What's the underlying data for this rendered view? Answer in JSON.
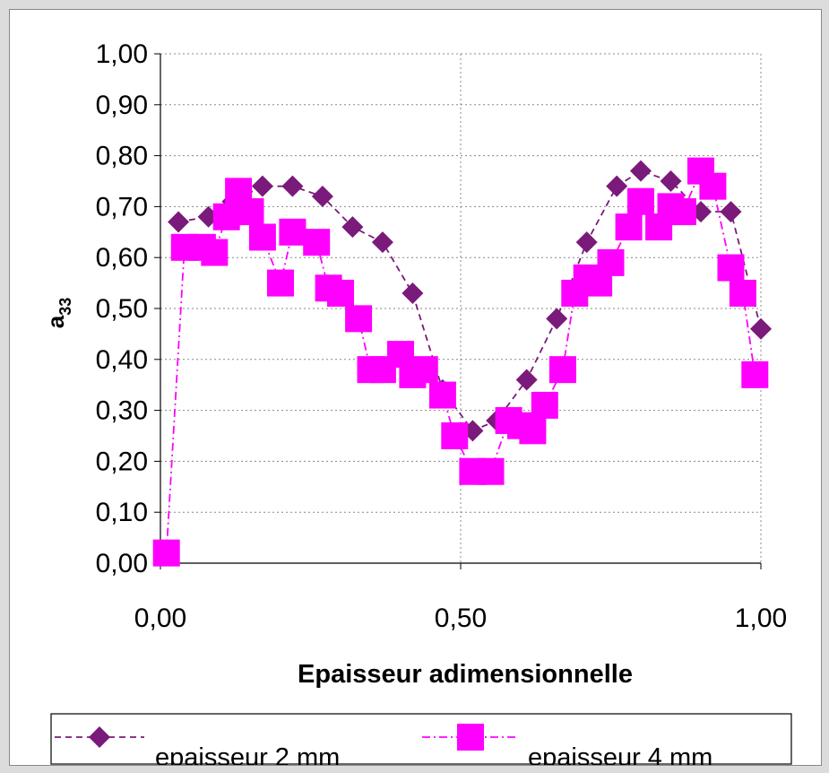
{
  "chart_data": {
    "type": "scatter",
    "xlabel": "Epaisseur adimensionnelle",
    "ylabel_main": "a",
    "ylabel_sub": "33",
    "xlim": [
      0,
      1
    ],
    "ylim": [
      0,
      1
    ],
    "xticks": [
      "0,00",
      "0,50",
      "1,00"
    ],
    "xtick_values": [
      0,
      0.5,
      1
    ],
    "yticks": [
      "0,00",
      "0,10",
      "0,20",
      "0,30",
      "0,40",
      "0,50",
      "0,60",
      "0,70",
      "0,80",
      "0,90",
      "1,00"
    ],
    "ytick_values": [
      0,
      0.1,
      0.2,
      0.3,
      0.4,
      0.5,
      0.6,
      0.7,
      0.8,
      0.9,
      1.0
    ],
    "grid": "dotted",
    "legend_position": "bottom",
    "series": [
      {
        "name": "epaisseur 2 mm",
        "marker": "diamond",
        "color": "#7a1a7a",
        "x": [
          0.03,
          0.08,
          0.12,
          0.17,
          0.22,
          0.27,
          0.32,
          0.37,
          0.42,
          0.47,
          0.52,
          0.56,
          0.61,
          0.66,
          0.71,
          0.76,
          0.8,
          0.85,
          0.9,
          0.95,
          1.0
        ],
        "y": [
          0.67,
          0.68,
          0.71,
          0.74,
          0.74,
          0.72,
          0.66,
          0.63,
          0.53,
          0.34,
          0.26,
          0.28,
          0.36,
          0.48,
          0.63,
          0.74,
          0.77,
          0.75,
          0.69,
          0.69,
          0.46
        ]
      },
      {
        "name": "epaisseur 4 mm",
        "marker": "square",
        "color": "#ff00ff",
        "x": [
          0.01,
          0.04,
          0.07,
          0.09,
          0.11,
          0.13,
          0.15,
          0.17,
          0.2,
          0.22,
          0.26,
          0.28,
          0.3,
          0.33,
          0.35,
          0.37,
          0.4,
          0.42,
          0.44,
          0.47,
          0.49,
          0.52,
          0.55,
          0.58,
          0.6,
          0.62,
          0.64,
          0.67,
          0.69,
          0.71,
          0.73,
          0.75,
          0.78,
          0.8,
          0.83,
          0.85,
          0.87,
          0.9,
          0.92,
          0.95,
          0.97,
          0.99
        ],
        "y": [
          0.02,
          0.62,
          0.62,
          0.61,
          0.68,
          0.73,
          0.69,
          0.64,
          0.55,
          0.65,
          0.63,
          0.54,
          0.53,
          0.48,
          0.38,
          0.38,
          0.41,
          0.37,
          0.38,
          0.33,
          0.25,
          0.18,
          0.18,
          0.28,
          0.27,
          0.26,
          0.31,
          0.38,
          0.53,
          0.56,
          0.55,
          0.59,
          0.66,
          0.71,
          0.66,
          0.7,
          0.69,
          0.77,
          0.74,
          0.58,
          0.53,
          0.37
        ]
      }
    ]
  }
}
